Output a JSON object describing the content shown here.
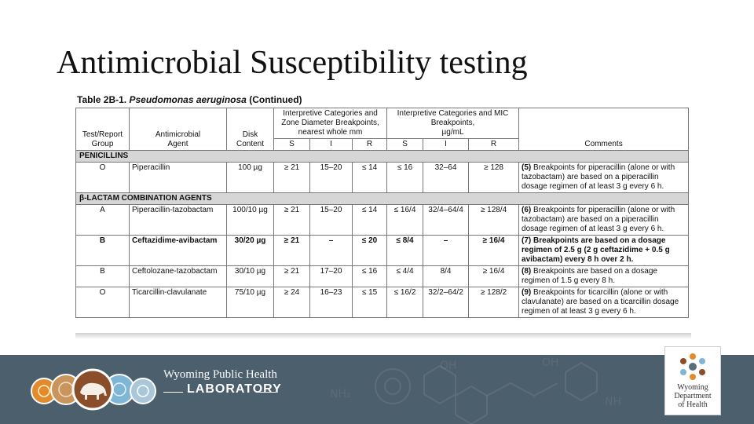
{
  "slide": {
    "title": "Antimicrobial Susceptibility testing"
  },
  "table": {
    "caption_prefix": "Table 2B-1.",
    "caption_organism": "Pseudomonas aeruginosa",
    "caption_suffix": "(Continued)",
    "headers": {
      "group_1": "Test/Report",
      "group_2": "Group",
      "agent_1": "Antimicrobial",
      "agent_2": "Agent",
      "disk_1": "Disk",
      "disk_2": "Content",
      "zone_1": "Interpretive Categories and",
      "zone_2": "Zone Diameter Breakpoints,",
      "zone_3": "nearest whole mm",
      "mic_1": "Interpretive Categories and MIC",
      "mic_2": "Breakpoints,",
      "mic_3": "µg/mL",
      "s": "S",
      "i": "I",
      "r": "R",
      "comments": "Comments"
    },
    "sections": [
      {
        "name": "PENICILLINS",
        "rows": [
          {
            "group": "O",
            "agent": "Piperacillin",
            "disk": "100 µg",
            "zs": "≥ 21",
            "zi": "15–20",
            "zr": "≤ 14",
            "ms": "≤ 16",
            "mi": "32–64",
            "mr": "≥ 128",
            "comment_num": "(5)",
            "comment": "Breakpoints for piperacillin (alone or with tazobactam) are based on a piperacillin dosage regimen of at least 3 g every 6 h."
          }
        ]
      },
      {
        "name": "β-LACTAM COMBINATION AGENTS",
        "rows": [
          {
            "group": "A",
            "agent": "Piperacillin-tazobactam",
            "disk": "100/10 µg",
            "zs": "≥ 21",
            "zi": "15–20",
            "zr": "≤ 14",
            "ms": "≤ 16/4",
            "mi": "32/4–64/4",
            "mr": "≥ 128/4",
            "comment_num": "(6)",
            "comment": "Breakpoints for piperacillin (alone or with tazobactam) are based on a piperacillin dosage regimen of at least 3 g every 6 h."
          },
          {
            "group": "B",
            "agent": "Ceftazidime-avibactam",
            "disk": "30/20 µg",
            "zs": "≥ 21",
            "zi": "–",
            "zr": "≤ 20",
            "ms": "≤ 8/4",
            "mi": "–",
            "mr": "≥ 16/4",
            "comment_num": "(7)",
            "comment": "Breakpoints are based on a dosage regimen of 2.5 g (2 g ceftazidime + 0.5 g avibactam) every 8 h over 2 h."
          },
          {
            "group": "B",
            "agent": "Ceftolozane-tazobactam",
            "disk": "30/10 µg",
            "zs": "≥ 21",
            "zi": "17–20",
            "zr": "≤ 16",
            "ms": "≤ 4/4",
            "mi": "8/4",
            "mr": "≥ 16/4",
            "comment_num": "(8)",
            "comment": "Breakpoints are based on a dosage regimen of 1.5 g every 8 h."
          },
          {
            "group": "O",
            "agent": "Ticarcillin-clavulanate",
            "disk": "75/10 µg",
            "zs": "≥ 24",
            "zi": "16–23",
            "zr": "≤ 15",
            "ms": "≤ 16/2",
            "mi": "32/2–64/2",
            "mr": "≥ 128/2",
            "comment_num": "(9)",
            "comment": "Breakpoints for ticarcillin (alone or with clavulanate) are based on a ticarcillin dosage regimen of at least 3 g every 6 h."
          }
        ]
      }
    ]
  },
  "footer": {
    "lab_line1": "Wyoming Public Health",
    "lab_line2": "LABORATORY",
    "doh_line1": "Wyoming",
    "doh_line2": "Department",
    "doh_line3": "of Health",
    "colors": {
      "band": "#4b5f6c",
      "ring_orange": "#e38b2c",
      "ring_blue": "#7fb6d6",
      "ring_brown": "#8a4f2a"
    }
  }
}
